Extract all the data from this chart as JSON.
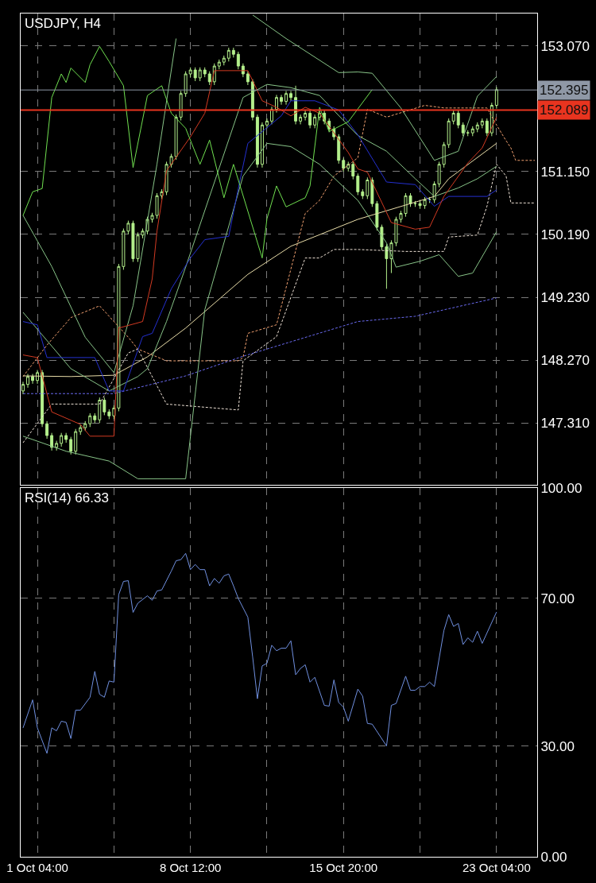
{
  "chart_data": [
    {
      "type": "candlestick",
      "title": "USDJPY, H4",
      "color": "#b4f08c",
      "grid": true,
      "tick_labels": "y",
      "categories": [
        null,
        null,
        null,
        null,
        null,
        null,
        null,
        null,
        null,
        null,
        null,
        null,
        null,
        null,
        null,
        null,
        null,
        null,
        null,
        null,
        null,
        null,
        null,
        null,
        null,
        null,
        null,
        null,
        null,
        null,
        null,
        null,
        null,
        null,
        null,
        null,
        null,
        null,
        null,
        null,
        null,
        null,
        null,
        null,
        null,
        null,
        null,
        null,
        null,
        null,
        null,
        null,
        null,
        null,
        null,
        null,
        null,
        null,
        null,
        null,
        null,
        null,
        null,
        null,
        null,
        null,
        null,
        null,
        null,
        null,
        null,
        null,
        null,
        null,
        null,
        null,
        null,
        null,
        null,
        null,
        null,
        null,
        null,
        null,
        null,
        null,
        null,
        null,
        null,
        null,
        null,
        null,
        null,
        null,
        null,
        null,
        null,
        null,
        null,
        null,
        null,
        null,
        null,
        null,
        null,
        null,
        null,
        null
      ],
      "ylim": [
        146.362,
        153.562
      ],
      "yticks": [
        {
          "value": 153.07,
          "label": "153.070"
        },
        {
          "value": 151.15,
          "label": "151.150"
        },
        {
          "value": 150.19,
          "label": "150.190"
        },
        {
          "value": 149.23,
          "label": "149.230"
        },
        {
          "value": 148.27,
          "label": "148.270"
        },
        {
          "value": 147.31,
          "label": "147.310"
        }
      ],
      "ref_lines": [
        {
          "axis": "y",
          "value": 152.395,
          "label": "152.395",
          "color": "#8f98a6",
          "line_style": "solid"
        },
        {
          "axis": "y",
          "value": 152.089,
          "label": "152.089",
          "color": "#e8341f",
          "line_style": "solid"
        }
      ],
      "ohlc": [
        [
          147.8,
          147.94,
          147.75,
          147.9
        ],
        [
          147.9,
          148.06,
          147.85,
          148.02
        ],
        [
          148.02,
          148.06,
          147.91,
          147.96
        ],
        [
          147.96,
          148.12,
          147.91,
          148.08
        ],
        [
          148.08,
          148.12,
          147.25,
          147.3
        ],
        [
          147.3,
          147.34,
          147.07,
          147.12
        ],
        [
          147.12,
          147.16,
          146.89,
          146.94
        ],
        [
          146.94,
          147.04,
          146.89,
          147.0
        ],
        [
          147.0,
          147.16,
          146.95,
          147.12
        ],
        [
          147.12,
          147.16,
          147.01,
          147.06
        ],
        [
          147.06,
          147.1,
          146.83,
          146.88
        ],
        [
          146.88,
          147.22,
          146.83,
          147.18
        ],
        [
          147.18,
          147.28,
          147.13,
          147.24
        ],
        [
          147.24,
          147.34,
          147.19,
          147.3
        ],
        [
          147.3,
          147.46,
          147.25,
          147.42
        ],
        [
          147.42,
          147.46,
          147.31,
          147.36
        ],
        [
          147.36,
          147.7,
          147.31,
          147.66
        ],
        [
          147.66,
          147.7,
          147.43,
          147.48
        ],
        [
          147.48,
          147.52,
          147.37,
          147.42
        ],
        [
          147.42,
          147.58,
          147.37,
          147.54
        ],
        [
          147.54,
          149.74,
          147.49,
          149.7
        ],
        [
          149.7,
          150.28,
          149.65,
          150.24
        ],
        [
          150.24,
          150.4,
          150.19,
          150.36
        ],
        [
          150.36,
          150.4,
          149.77,
          149.82
        ],
        [
          149.82,
          150.22,
          149.77,
          150.18
        ],
        [
          150.18,
          150.28,
          150.13,
          150.24
        ],
        [
          150.24,
          150.46,
          150.19,
          150.42
        ],
        [
          150.42,
          150.52,
          150.37,
          150.48
        ],
        [
          150.48,
          150.82,
          150.43,
          150.78
        ],
        [
          150.78,
          150.88,
          150.73,
          150.84
        ],
        [
          150.84,
          151.3,
          150.79,
          151.26
        ],
        [
          151.26,
          151.42,
          151.21,
          151.38
        ],
        [
          151.38,
          152.02,
          151.33,
          151.98
        ],
        [
          151.98,
          152.38,
          151.93,
          152.34
        ],
        [
          152.34,
          152.68,
          152.29,
          152.64
        ],
        [
          152.64,
          152.74,
          152.59,
          152.7
        ],
        [
          152.7,
          152.74,
          152.53,
          152.58
        ],
        [
          152.58,
          152.74,
          152.53,
          152.7
        ],
        [
          152.7,
          152.74,
          152.59,
          152.64
        ],
        [
          152.64,
          152.68,
          152.47,
          152.52
        ],
        [
          152.52,
          152.8,
          152.47,
          152.76
        ],
        [
          152.76,
          152.86,
          152.71,
          152.82
        ],
        [
          152.82,
          152.92,
          152.77,
          152.88
        ],
        [
          152.88,
          153.04,
          152.83,
          153.0
        ],
        [
          153.0,
          153.04,
          152.89,
          152.94
        ],
        [
          152.94,
          152.98,
          152.71,
          152.76
        ],
        [
          152.76,
          152.8,
          152.59,
          152.64
        ],
        [
          152.64,
          152.68,
          152.47,
          152.52
        ],
        [
          152.52,
          152.56,
          151.93,
          151.98
        ],
        [
          151.98,
          152.02,
          151.21,
          151.26
        ],
        [
          151.26,
          151.9,
          151.21,
          151.86
        ],
        [
          151.86,
          151.96,
          151.81,
          151.92
        ],
        [
          151.92,
          152.14,
          151.87,
          152.1
        ],
        [
          152.1,
          152.32,
          152.05,
          152.28
        ],
        [
          152.28,
          152.32,
          152.17,
          152.22
        ],
        [
          152.22,
          152.38,
          152.17,
          152.34
        ],
        [
          152.34,
          152.38,
          152.23,
          152.28
        ],
        [
          152.28,
          152.46,
          151.87,
          151.92
        ],
        [
          151.92,
          152.02,
          151.87,
          151.98
        ],
        [
          151.98,
          152.08,
          151.93,
          152.04
        ],
        [
          152.04,
          152.08,
          151.81,
          151.86
        ],
        [
          151.86,
          152.02,
          151.81,
          151.98
        ],
        [
          151.98,
          152.08,
          151.93,
          152.04
        ],
        [
          152.04,
          152.08,
          151.87,
          151.92
        ],
        [
          151.92,
          151.96,
          151.75,
          151.8
        ],
        [
          151.8,
          151.84,
          151.63,
          151.68
        ],
        [
          151.68,
          151.72,
          151.27,
          151.32
        ],
        [
          151.32,
          151.36,
          151.15,
          151.2
        ],
        [
          151.2,
          151.3,
          151.15,
          151.26
        ],
        [
          151.26,
          151.3,
          151.03,
          151.08
        ],
        [
          151.08,
          151.12,
          150.79,
          150.84
        ],
        [
          150.84,
          150.88,
          150.73,
          150.78
        ],
        [
          150.78,
          151.06,
          150.73,
          151.02
        ],
        [
          151.02,
          151.06,
          150.61,
          150.66
        ],
        [
          150.66,
          150.7,
          150.25,
          150.3
        ],
        [
          150.3,
          150.34,
          149.95,
          150.0
        ],
        [
          150.0,
          150.04,
          149.36,
          149.82
        ],
        [
          149.82,
          150.1,
          149.6,
          150.06
        ],
        [
          150.06,
          150.46,
          150.01,
          150.42
        ],
        [
          150.42,
          150.55,
          150.37,
          150.51
        ],
        [
          150.51,
          150.82,
          150.46,
          150.78
        ],
        [
          150.78,
          150.82,
          150.61,
          150.66
        ],
        [
          150.66,
          150.7,
          150.61,
          150.66
        ],
        [
          150.66,
          150.7,
          150.58,
          150.63
        ],
        [
          150.63,
          150.76,
          150.58,
          150.72
        ],
        [
          150.72,
          150.76,
          150.67,
          150.72
        ],
        [
          150.72,
          151.0,
          150.67,
          150.96
        ],
        [
          150.96,
          151.3,
          150.91,
          151.26
        ],
        [
          151.26,
          151.6,
          151.21,
          151.56
        ],
        [
          151.56,
          151.96,
          151.51,
          151.92
        ],
        [
          151.92,
          152.08,
          151.87,
          152.04
        ],
        [
          152.04,
          152.08,
          151.81,
          151.86
        ],
        [
          151.86,
          151.9,
          151.69,
          151.74
        ],
        [
          151.74,
          151.78,
          151.69,
          151.74
        ],
        [
          151.74,
          151.84,
          151.69,
          151.8
        ],
        [
          151.8,
          151.9,
          151.75,
          151.86
        ],
        [
          151.86,
          151.96,
          151.81,
          151.92
        ],
        [
          151.92,
          151.96,
          151.69,
          151.74
        ],
        [
          151.74,
          152.2,
          151.69,
          152.16
        ],
        [
          152.16,
          152.44,
          152.11,
          152.4
        ],
        null,
        null,
        null,
        null,
        null,
        null,
        null,
        null
      ],
      "series": [
        {
          "type": "line",
          "color": "#f0a070",
          "line_style": "dashed",
          "values": [
            148.02,
            null,
            null,
            null,
            null,
            148.5,
            null,
            null,
            null,
            null,
            148.92,
            null,
            null,
            null,
            null,
            null,
            149.1,
            null,
            null,
            null,
            null,
            null,
            148.62,
            null,
            148.44,
            null,
            null,
            null,
            null,
            null,
            148.26,
            null,
            null,
            null,
            null,
            null,
            null,
            null,
            null,
            null,
            null,
            null,
            null,
            null,
            null,
            148.26,
            148.31,
            148.68,
            null,
            null,
            null,
            null,
            null,
            148.81,
            null,
            null,
            null,
            null,
            null,
            150.51,
            null,
            null,
            150.71,
            null,
            null,
            151.08,
            null,
            null,
            null,
            null,
            151.36,
            null,
            152.1,
            null,
            null,
            null,
            151.98,
            null,
            null,
            null,
            null,
            null,
            null,
            null,
            152.16,
            null,
            null,
            null,
            152.12,
            null,
            null,
            null,
            null,
            null,
            null,
            null,
            null,
            152.12,
            null,
            151.86,
            null,
            151.62,
            151.51,
            151.32,
            null,
            null,
            null,
            151.32
          ]
        },
        {
          "type": "line",
          "color": "#eee2d6",
          "line_style": "dashed",
          "values": [
            147.01,
            null,
            null,
            null,
            null,
            null,
            147.6,
            null,
            null,
            null,
            147.6,
            null,
            null,
            null,
            null,
            null,
            147.6,
            null,
            null,
            null,
            null,
            null,
            148.38,
            null,
            148.44,
            null,
            null,
            null,
            null,
            null,
            147.6,
            null,
            null,
            null,
            null,
            null,
            null,
            null,
            null,
            null,
            null,
            null,
            null,
            null,
            null,
            147.51,
            148.26,
            null,
            null,
            null,
            null,
            null,
            null,
            148.63,
            null,
            null,
            null,
            null,
            null,
            149.83,
            null,
            null,
            149.83,
            null,
            null,
            149.96,
            null,
            null,
            null,
            null,
            149.96,
            null,
            null,
            null,
            null,
            null,
            null,
            null,
            null,
            null,
            149.93,
            null,
            null,
            null,
            null,
            null,
            null,
            null,
            149.93,
            150.15,
            null,
            null,
            null,
            null,
            null,
            150.18,
            null,
            150.62,
            null,
            151.26,
            null,
            151.08,
            150.67,
            null,
            null,
            null,
            null,
            150.67
          ]
        },
        {
          "type": "line",
          "color": "#6a6af0",
          "line_style": "dashed",
          "values": [
            147.76,
            null,
            null,
            null,
            null,
            null,
            null,
            null,
            null,
            null,
            null,
            null,
            null,
            null,
            null,
            null,
            null,
            null,
            null,
            147.76,
            null,
            null,
            null,
            null,
            null,
            null,
            null,
            null,
            null,
            null,
            null,
            null,
            null,
            null,
            148.03,
            null,
            null,
            null,
            null,
            null,
            null,
            null,
            null,
            null,
            null,
            null,
            148.33,
            null,
            null,
            null,
            null,
            null,
            null,
            null,
            null,
            null,
            null,
            null,
            null,
            null,
            null,
            null,
            null,
            null,
            null,
            null,
            null,
            null,
            null,
            null,
            148.86,
            null,
            null,
            null,
            null,
            null,
            null,
            null,
            null,
            null,
            null,
            null,
            148.94,
            null,
            null,
            null,
            null,
            null,
            null,
            null,
            null,
            null,
            null,
            null,
            null,
            null,
            null,
            null,
            null,
            149.22,
            null,
            null,
            null,
            null,
            null,
            null,
            null,
            null
          ]
        },
        {
          "type": "line",
          "color": "#e8dca8",
          "line_style": "solid",
          "values": [
            148.03,
            null,
            null,
            null,
            null,
            null,
            null,
            null,
            null,
            null,
            148.02,
            null,
            null,
            null,
            null,
            null,
            null,
            null,
            null,
            148.04,
            null,
            null,
            null,
            null,
            null,
            null,
            148.32,
            null,
            null,
            null,
            null,
            null,
            null,
            null,
            148.76,
            null,
            null,
            null,
            null,
            null,
            null,
            null,
            null,
            null,
            null,
            null,
            null,
            149.58,
            null,
            null,
            null,
            null,
            null,
            null,
            null,
            null,
            150.01,
            null,
            null,
            null,
            null,
            null,
            null,
            null,
            null,
            null,
            null,
            null,
            null,
            null,
            150.42,
            null,
            null,
            null,
            null,
            null,
            null,
            null,
            null,
            null,
            null,
            null,
            null,
            null,
            null,
            null,
            150.77,
            null,
            null,
            151.04,
            null,
            null,
            null,
            null,
            null,
            null,
            null,
            null,
            null,
            151.58,
            null,
            null,
            null,
            null,
            null,
            null,
            null,
            null
          ]
        },
        {
          "type": "line",
          "color": "#88c488",
          "line_style": "solid",
          "values": [
            150.48,
            null,
            null,
            null,
            null,
            null,
            149.7,
            null,
            null,
            null,
            null,
            null,
            null,
            148.62,
            null,
            null,
            null,
            null,
            null,
            148.08,
            null,
            null,
            null,
            149.1,
            null,
            null,
            null,
            null,
            151.26,
            null,
            null,
            null,
            153.18,
            null,
            null,
            null,
            null,
            null,
            null,
            null,
            null,
            null,
            null,
            null,
            null,
            null,
            null,
            null,
            null,
            null,
            null,
            null,
            null,
            null,
            null,
            null,
            null,
            null,
            null,
            null,
            null,
            null,
            null,
            null,
            null,
            null,
            null,
            null,
            null,
            null,
            null,
            null,
            null,
            null,
            null,
            null,
            null,
            null,
            null,
            null,
            null,
            null,
            null,
            null,
            null,
            null,
            null,
            null,
            null,
            null,
            null,
            null,
            null,
            null,
            null,
            null,
            null,
            null,
            null,
            null,
            null,
            null,
            null,
            null,
            null,
            null,
            null,
            null
          ]
        },
        {
          "type": "line",
          "color": "#88c488",
          "line_style": "solid",
          "values": [
            null,
            null,
            null,
            null,
            null,
            null,
            null,
            null,
            null,
            null,
            null,
            null,
            null,
            null,
            null,
            null,
            null,
            null,
            null,
            null,
            null,
            null,
            null,
            null,
            null,
            null,
            null,
            null,
            null,
            null,
            null,
            null,
            null,
            null,
            null,
            null,
            null,
            null,
            null,
            null,
            null,
            null,
            null,
            null,
            null,
            null,
            null,
            null,
            153.54,
            null,
            null,
            null,
            null,
            null,
            null,
            153.18,
            null,
            null,
            null,
            null,
            null,
            null,
            null,
            null,
            null,
            null,
            152.66,
            null,
            null,
            null,
            152.67,
            null,
            null,
            152.65,
            null,
            null,
            null,
            null,
            null,
            152.12,
            null,
            null,
            null,
            null,
            null,
            null,
            151.32,
            null,
            null,
            null,
            null,
            151.46,
            null,
            null,
            null,
            152.3,
            null,
            null,
            null,
            152.6,
            null,
            null,
            null,
            null,
            null,
            null,
            null,
            null
          ]
        },
        {
          "type": "line",
          "color": "#88c488",
          "line_style": "solid",
          "values": [
            149.0,
            null,
            null,
            null,
            null,
            null,
            null,
            null,
            null,
            null,
            148.14,
            null,
            null,
            null,
            null,
            null,
            null,
            null,
            147.8,
            null,
            null,
            null,
            null,
            null,
            148.02,
            null,
            148.14,
            null,
            null,
            null,
            148.86,
            null,
            null,
            null,
            149.69,
            null,
            null,
            null,
            null,
            null,
            null,
            null,
            null,
            null,
            null,
            null,
            152.28,
            null,
            null,
            null,
            null,
            152.48,
            null,
            null,
            null,
            null,
            152.43,
            null,
            null,
            null,
            null,
            null,
            152.31,
            null,
            null,
            null,
            null,
            null,
            null,
            null,
            151.7,
            null,
            null,
            null,
            null,
            null,
            151.46,
            null,
            null,
            null,
            null,
            null,
            151.04,
            null,
            null,
            null,
            150.77,
            null,
            null,
            null,
            null,
            150.9,
            null,
            null,
            null,
            151.04,
            null,
            null,
            null,
            151.23,
            null,
            null,
            null,
            null,
            null,
            null,
            null,
            null
          ]
        },
        {
          "type": "line",
          "color": "#88c488",
          "line_style": "solid",
          "values": [
            147.11,
            null,
            null,
            null,
            null,
            null,
            null,
            null,
            null,
            146.88,
            null,
            null,
            null,
            null,
            null,
            null,
            null,
            null,
            146.73,
            null,
            null,
            null,
            null,
            null,
            146.46,
            null,
            null,
            null,
            null,
            null,
            null,
            null,
            null,
            null,
            146.46,
            null,
            null,
            null,
            149.04,
            null,
            null,
            null,
            null,
            null,
            null,
            null,
            151.08,
            null,
            null,
            null,
            null,
            151.58,
            null,
            null,
            null,
            null,
            151.53,
            null,
            null,
            null,
            null,
            null,
            151.26,
            null,
            null,
            null,
            null,
            null,
            null,
            null,
            150.71,
            null,
            null,
            null,
            null,
            null,
            150.06,
            null,
            149.69,
            null,
            null,
            null,
            null,
            149.78,
            null,
            null,
            null,
            149.88,
            null,
            null,
            null,
            149.55,
            null,
            null,
            149.6,
            null,
            null,
            null,
            null,
            150.23,
            null,
            null,
            null,
            null,
            null,
            null,
            null,
            null
          ]
        },
        {
          "type": "line",
          "color": "#2430d0",
          "line_style": "solid",
          "values": [
            148.86,
            null,
            null,
            148.81,
            null,
            148.31,
            null,
            null,
            null,
            null,
            null,
            null,
            null,
            null,
            null,
            148.31,
            null,
            null,
            147.8,
            null,
            null,
            147.8,
            null,
            null,
            null,
            148.63,
            null,
            148.68,
            null,
            null,
            null,
            149.36,
            null,
            null,
            null,
            149.83,
            null,
            null,
            150.11,
            null,
            null,
            null,
            null,
            150.16,
            null,
            150.89,
            null,
            151.58,
            null,
            null,
            null,
            null,
            null,
            null,
            152.0,
            null,
            152.23,
            null,
            null,
            null,
            null,
            152.23,
            null,
            null,
            null,
            null,
            152.09,
            null,
            null,
            null,
            151.71,
            null,
            null,
            null,
            null,
            null,
            150.99,
            null,
            null,
            null,
            null,
            null,
            150.95,
            null,
            null,
            null,
            150.62,
            null,
            null,
            150.77,
            null,
            null,
            null,
            null,
            null,
            null,
            null,
            150.77,
            null,
            150.87,
            null,
            null,
            null,
            null,
            null,
            null,
            null,
            null
          ]
        },
        {
          "type": "line",
          "color": "#d23a22",
          "line_style": "solid",
          "values": [
            148.35,
            null,
            null,
            148.31,
            null,
            null,
            147.48,
            null,
            null,
            null,
            null,
            null,
            147.29,
            null,
            147.11,
            null,
            null,
            null,
            null,
            147.11,
            148.76,
            null,
            null,
            null,
            null,
            148.86,
            null,
            149.51,
            150.24,
            null,
            151.16,
            null,
            null,
            null,
            null,
            151.68,
            null,
            null,
            152.04,
            null,
            152.69,
            null,
            null,
            null,
            null,
            null,
            null,
            152.69,
            null,
            null,
            152.23,
            null,
            null,
            152.13,
            null,
            null,
            152.0,
            null,
            null,
            152.13,
            null,
            null,
            152.04,
            null,
            null,
            null,
            null,
            null,
            151.44,
            null,
            151.19,
            null,
            151.14,
            null,
            null,
            null,
            null,
            150.37,
            null,
            null,
            null,
            null,
            150.27,
            null,
            null,
            150.3,
            null,
            null,
            150.77,
            null,
            null,
            null,
            null,
            151.28,
            null,
            null,
            151.51,
            null,
            null,
            151.98,
            null,
            null,
            null,
            null,
            null,
            null,
            null,
            null
          ]
        },
        {
          "type": "line",
          "color": "#70e050",
          "line_style": "solid",
          "values": [
            150.48,
            null,
            150.84,
            null,
            150.89,
            null,
            152.28,
            null,
            152.64,
            152.51,
            152.73,
            null,
            null,
            152.51,
            152.78,
            null,
            153.06,
            null,
            152.83,
            null,
            null,
            152.46,
            null,
            151.21,
            null,
            null,
            152.31,
            null,
            null,
            152.46,
            null,
            152.04,
            null,
            null,
            151.81,
            null,
            null,
            151.26,
            null,
            151.63,
            null,
            null,
            150.75,
            null,
            151.26,
            null,
            null,
            null,
            null,
            null,
            149.83,
            150.43,
            null,
            150.93,
            null,
            150.61,
            null,
            null,
            null,
            150.75,
            150.93,
            null,
            152.13,
            null,
            151.76,
            null,
            null,
            null,
            151.91,
            null,
            null,
            null,
            null,
            152.4,
            null,
            null,
            null,
            null,
            null,
            null,
            null,
            null,
            null,
            null,
            null,
            null,
            null,
            null,
            null,
            null,
            null,
            null,
            null,
            null,
            null,
            null,
            null,
            null,
            null,
            null,
            null,
            null,
            null,
            null,
            null,
            null,
            null,
            null
          ]
        }
      ]
    },
    {
      "type": "line",
      "title": "RSI(14) 66.33",
      "color": "#7090e0",
      "grid": true,
      "categories": [
        null,
        null,
        null,
        "1 Oct 04:00",
        null,
        null,
        null,
        null,
        null,
        null,
        null,
        null,
        null,
        null,
        null,
        null,
        null,
        null,
        null,
        null,
        null,
        null,
        null,
        null,
        null,
        null,
        null,
        null,
        null,
        null,
        null,
        null,
        null,
        null,
        null,
        "8 Oct 12:00",
        null,
        null,
        null,
        null,
        null,
        null,
        null,
        null,
        null,
        null,
        null,
        null,
        null,
        null,
        null,
        null,
        null,
        null,
        null,
        null,
        null,
        null,
        null,
        null,
        null,
        null,
        null,
        null,
        null,
        null,
        null,
        "15 Oct 20:00",
        null,
        null,
        null,
        null,
        null,
        null,
        null,
        null,
        null,
        null,
        null,
        null,
        null,
        null,
        null,
        null,
        null,
        null,
        null,
        null,
        null,
        null,
        null,
        null,
        null,
        null,
        null,
        null,
        null,
        null,
        null,
        "23 Oct 04:00",
        null,
        null,
        null,
        null,
        null,
        null,
        null,
        null
      ],
      "ylim": [
        0,
        100
      ],
      "yticks": [
        {
          "value": 100,
          "label": "100.00"
        },
        {
          "value": 70,
          "label": "70.00"
        },
        {
          "value": 30,
          "label": "30.00"
        },
        {
          "value": 0,
          "label": "0.00"
        }
      ],
      "values": [
        34.9,
        null,
        42.5,
        34.9,
        null,
        28.0,
        34.9,
        34.1,
        36.7,
        36.4,
        32.0,
        39.7,
        39.7,
        null,
        43.2,
        50.2,
        44.0,
        43.2,
        47.6,
        47.3,
        71.0,
        74.6,
        74.8,
        66.2,
        68.7,
        null,
        70.7,
        69.5,
        72.0,
        72.3,
        null,
        77.4,
        80.2,
        80.5,
        82.2,
        77.8,
        79.2,
        77.8,
        77.8,
        73.4,
        75.4,
        74.1,
        76.1,
        76.6,
        73.4,
        70.0,
        null,
        64.9,
        54.2,
        42.8,
        51.7,
        52.4,
        57.3,
        55.8,
        56.5,
        56.5,
        58.5,
        49.3,
        51.0,
        52.0,
        47.3,
        48.6,
        null,
        41.0,
        40.8,
        47.9,
        41.8,
        40.5,
        36.7,
        null,
        45.4,
        43.5,
        36.1,
        35.9,
        null,
        null,
        30.0,
        41.0,
        41.5,
        null,
        48.9,
        45.1,
        45.1,
        46.1,
        46.1,
        47.3,
        46.1,
        null,
        61.3,
        65.6,
        62.4,
        63.2,
        57.5,
        59.3,
        58.1,
        61.1,
        57.8,
        null,
        null,
        66.3,
        null,
        null,
        null,
        null,
        null,
        null,
        null,
        null
      ]
    }
  ]
}
